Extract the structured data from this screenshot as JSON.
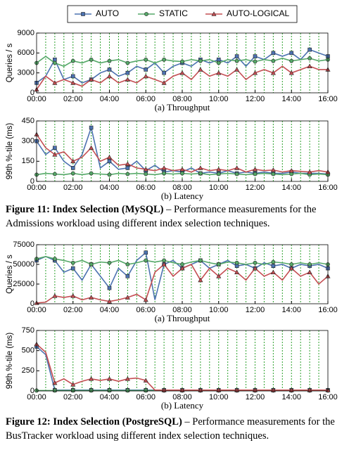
{
  "chart_data": [
    {
      "type": "line",
      "xlabel": "(a) Throughput",
      "ylabel": "Queries / s",
      "x": [
        0,
        0.5,
        1,
        1.5,
        2,
        2.5,
        3,
        3.5,
        4,
        4.5,
        5,
        5.5,
        6,
        6.5,
        7,
        7.5,
        8,
        8.5,
        9,
        9.5,
        10,
        10.5,
        11,
        11.5,
        12,
        12.5,
        13,
        13.5,
        14,
        14.5,
        15,
        15.5,
        16
      ],
      "xlim": [
        0,
        16
      ],
      "ylim": [
        0,
        9000
      ],
      "yticks": [
        0,
        3000,
        6000,
        9000
      ],
      "xticks": [
        {
          "value": 0,
          "label": "00:00"
        },
        {
          "value": 2,
          "label": "02:00"
        },
        {
          "value": 4,
          "label": "04:00"
        },
        {
          "value": 6,
          "label": "06:00"
        },
        {
          "value": 8,
          "label": "08:00"
        },
        {
          "value": 10,
          "label": "10:00"
        },
        {
          "value": 12,
          "label": "12:00"
        },
        {
          "value": 14,
          "label": "14:00"
        },
        {
          "value": 16,
          "label": "16:00"
        }
      ],
      "events_x": [
        0.5,
        1,
        1.5,
        2,
        2.5,
        3,
        3.5,
        4,
        4.5,
        5,
        5.5,
        6,
        6.5,
        7,
        7.5,
        8,
        8.5,
        9,
        9.5,
        10,
        10.5,
        11,
        11.5,
        12,
        12.5,
        13,
        13.5,
        14,
        14.5,
        15,
        15.5
      ],
      "events_color": "#2ca02c",
      "series": [
        {
          "name": "AUTO",
          "color": "#4c72b0",
          "marker": "square",
          "values": [
            1500,
            2500,
            5000,
            2000,
            2500,
            1500,
            2000,
            3000,
            3500,
            2500,
            3000,
            4000,
            3500,
            4500,
            3000,
            4000,
            4500,
            4000,
            5000,
            4500,
            5000,
            4500,
            5500,
            4000,
            5500,
            5000,
            6000,
            5500,
            6000,
            5000,
            6500,
            6000,
            5500
          ]
        },
        {
          "name": "STATIC",
          "color": "#55a868",
          "marker": "circle",
          "values": [
            4500,
            5500,
            4500,
            4000,
            4800,
            4500,
            5000,
            4500,
            4800,
            5000,
            4500,
            4800,
            5000,
            4500,
            5000,
            4800,
            4700,
            5000,
            4800,
            5000,
            4500,
            5000,
            4800,
            5000,
            4700,
            5000,
            4800,
            5200,
            4800,
            5000,
            5200,
            4800,
            5000
          ]
        },
        {
          "name": "AUTO-LOGICAL",
          "color": "#c44e52",
          "marker": "triangle",
          "values": [
            500,
            2500,
            1500,
            2000,
            1500,
            1000,
            2000,
            1500,
            2500,
            1500,
            2000,
            1500,
            2500,
            2000,
            1500,
            2500,
            3000,
            2000,
            3500,
            2500,
            3000,
            2500,
            3500,
            2000,
            3000,
            3500,
            3000,
            4000,
            3000,
            3500,
            4000,
            3500,
            3500
          ]
        }
      ]
    },
    {
      "type": "line",
      "xlabel": "(b) Latency",
      "ylabel": "99th %-tile (ms)",
      "x": [
        0,
        0.5,
        1,
        1.5,
        2,
        2.5,
        3,
        3.5,
        4,
        4.5,
        5,
        5.5,
        6,
        6.5,
        7,
        7.5,
        8,
        8.5,
        9,
        9.5,
        10,
        10.5,
        11,
        11.5,
        12,
        12.5,
        13,
        13.5,
        14,
        14.5,
        15,
        15.5,
        16
      ],
      "xlim": [
        0,
        16
      ],
      "ylim": [
        0,
        450
      ],
      "yticks": [
        0,
        150,
        300,
        450
      ],
      "xticks": [
        {
          "value": 0,
          "label": "00:00"
        },
        {
          "value": 2,
          "label": "02:00"
        },
        {
          "value": 4,
          "label": "04:00"
        },
        {
          "value": 6,
          "label": "06:00"
        },
        {
          "value": 8,
          "label": "08:00"
        },
        {
          "value": 10,
          "label": "10:00"
        },
        {
          "value": 12,
          "label": "12:00"
        },
        {
          "value": 14,
          "label": "14:00"
        },
        {
          "value": 16,
          "label": "16:00"
        }
      ],
      "events_x": [
        0.5,
        1,
        1.5,
        2,
        2.5,
        3,
        3.5,
        4,
        4.5,
        5,
        5.5,
        6,
        6.5,
        7,
        7.5,
        8,
        8.5,
        9,
        9.5,
        10,
        10.5,
        11,
        11.5,
        12,
        12.5,
        13,
        13.5,
        14,
        14.5,
        15,
        15.5
      ],
      "events_color": "#2ca02c",
      "series": [
        {
          "color": "#4c72b0",
          "marker": "square",
          "values": [
            300,
            200,
            250,
            150,
            100,
            200,
            400,
            100,
            150,
            90,
            100,
            150,
            80,
            120,
            70,
            80,
            70,
            100,
            60,
            70,
            60,
            80,
            60,
            70,
            60,
            70,
            60,
            60,
            70,
            60,
            60,
            60,
            55
          ]
        },
        {
          "color": "#55a868",
          "marker": "circle",
          "values": [
            50,
            60,
            55,
            50,
            60,
            50,
            60,
            55,
            50,
            60,
            55,
            60,
            55,
            50,
            60,
            55,
            60,
            55,
            60,
            50,
            55,
            60,
            55,
            50,
            55,
            60,
            55,
            50,
            55,
            60,
            50,
            55,
            50
          ]
        },
        {
          "color": "#c44e52",
          "marker": "triangle",
          "values": [
            350,
            250,
            200,
            220,
            150,
            180,
            250,
            150,
            180,
            120,
            130,
            100,
            90,
            80,
            100,
            80,
            90,
            70,
            100,
            80,
            90,
            80,
            100,
            70,
            90,
            80,
            85,
            70,
            80,
            75,
            70,
            80,
            70
          ]
        }
      ]
    },
    {
      "type": "line",
      "xlabel": "(a) Throughput",
      "ylabel": "Queries / s",
      "x": [
        0,
        0.5,
        1,
        1.5,
        2,
        2.5,
        3,
        3.5,
        4,
        4.5,
        5,
        5.5,
        6,
        6.5,
        7,
        7.5,
        8,
        8.5,
        9,
        9.5,
        10,
        10.5,
        11,
        11.5,
        12,
        12.5,
        13,
        13.5,
        14,
        14.5,
        15,
        15.5,
        16
      ],
      "xlim": [
        0,
        16
      ],
      "ylim": [
        0,
        75000
      ],
      "yticks": [
        0,
        25000,
        50000,
        75000
      ],
      "xticks": [
        {
          "value": 0,
          "label": "00:00"
        },
        {
          "value": 2,
          "label": "02:00"
        },
        {
          "value": 4,
          "label": "04:00"
        },
        {
          "value": 6,
          "label": "06:00"
        },
        {
          "value": 8,
          "label": "08:00"
        },
        {
          "value": 10,
          "label": "10:00"
        },
        {
          "value": 12,
          "label": "12:00"
        },
        {
          "value": 14,
          "label": "14:00"
        },
        {
          "value": 16,
          "label": "16:00"
        }
      ],
      "events_x": [
        0.5,
        1,
        1.5,
        2,
        2.5,
        3,
        3.5,
        4,
        4.5,
        5,
        5.5,
        6,
        6.5,
        7,
        7.5,
        8,
        8.5,
        9,
        9.5,
        10,
        10.5,
        11,
        11.5,
        12,
        12.5,
        13,
        13.5,
        14,
        14.5,
        15,
        15.5
      ],
      "events_color": "#2ca02c",
      "series": [
        {
          "color": "#4c72b0",
          "marker": "square",
          "values": [
            55000,
            60000,
            55000,
            40000,
            45000,
            30000,
            50000,
            35000,
            20000,
            45000,
            35000,
            55000,
            65000,
            5000,
            50000,
            55000,
            45000,
            50000,
            55000,
            45000,
            50000,
            55000,
            48000,
            50000,
            45000,
            52000,
            48000,
            50000,
            45000,
            50000,
            48000,
            50000,
            45000
          ]
        },
        {
          "color": "#55a868",
          "marker": "circle",
          "values": [
            57000,
            60000,
            57000,
            55000,
            52000,
            55000,
            50000,
            53000,
            52000,
            55000,
            50000,
            52000,
            55000,
            53000,
            55000,
            52000,
            50000,
            53000,
            55000,
            52000,
            50000,
            53000,
            52000,
            50000,
            52000,
            50000,
            53000,
            52000,
            50000,
            52000,
            50000,
            52000,
            50000
          ]
        },
        {
          "color": "#c44e52",
          "marker": "triangle",
          "values": [
            1000,
            2000,
            10000,
            8000,
            10000,
            5000,
            8000,
            5000,
            3000,
            5000,
            8000,
            12000,
            5000,
            40000,
            50000,
            35000,
            45000,
            50000,
            30000,
            45000,
            35000,
            45000,
            40000,
            30000,
            45000,
            35000,
            40000,
            30000,
            45000,
            35000,
            40000,
            25000,
            35000
          ]
        }
      ]
    },
    {
      "type": "line",
      "xlabel": "(b) Latency",
      "ylabel": "99th %-tile (ms)",
      "x": [
        0,
        0.5,
        1,
        1.5,
        2,
        2.5,
        3,
        3.5,
        4,
        4.5,
        5,
        5.5,
        6,
        6.5,
        7,
        7.5,
        8,
        8.5,
        9,
        9.5,
        10,
        10.5,
        11,
        11.5,
        12,
        12.5,
        13,
        13.5,
        14,
        14.5,
        15,
        15.5,
        16
      ],
      "xlim": [
        0,
        16
      ],
      "ylim": [
        0,
        750
      ],
      "yticks": [
        0,
        250,
        500,
        750
      ],
      "xticks": [
        {
          "value": 0,
          "label": "00:00"
        },
        {
          "value": 2,
          "label": "02:00"
        },
        {
          "value": 4,
          "label": "04:00"
        },
        {
          "value": 6,
          "label": "06:00"
        },
        {
          "value": 8,
          "label": "08:00"
        },
        {
          "value": 10,
          "label": "10:00"
        },
        {
          "value": 12,
          "label": "12:00"
        },
        {
          "value": 14,
          "label": "14:00"
        },
        {
          "value": 16,
          "label": "16:00"
        }
      ],
      "events_x": [
        0.5,
        1,
        1.5,
        2,
        2.5,
        3,
        3.5,
        4,
        4.5,
        5,
        5.5,
        6,
        6.5,
        7,
        7.5,
        8,
        8.5,
        9,
        9.5,
        10,
        10.5,
        11,
        11.5,
        12,
        12.5,
        13,
        13.5,
        14,
        14.5,
        15,
        15.5
      ],
      "events_color": "#2ca02c",
      "series": [
        {
          "color": "#4c72b0",
          "marker": "square",
          "values": [
            550,
            450,
            10,
            10,
            10,
            10,
            10,
            10,
            10,
            10,
            10,
            10,
            10,
            10,
            10,
            10,
            10,
            10,
            10,
            10,
            10,
            10,
            10,
            10,
            10,
            10,
            10,
            10,
            10,
            10,
            10,
            10,
            10
          ]
        },
        {
          "color": "#55a868",
          "marker": "circle",
          "values": [
            5,
            5,
            5,
            5,
            5,
            5,
            5,
            5,
            5,
            5,
            5,
            5,
            5,
            5,
            5,
            5,
            5,
            5,
            5,
            5,
            5,
            5,
            5,
            5,
            5,
            5,
            5,
            5,
            5,
            5,
            5,
            5,
            5
          ]
        },
        {
          "color": "#c44e52",
          "marker": "triangle",
          "values": [
            580,
            480,
            100,
            150,
            80,
            120,
            150,
            130,
            150,
            120,
            150,
            160,
            130,
            10,
            10,
            10,
            10,
            10,
            10,
            10,
            10,
            10,
            10,
            10,
            10,
            10,
            10,
            10,
            10,
            10,
            10,
            10,
            10
          ]
        }
      ]
    }
  ],
  "captions": [
    {
      "bold": "Figure 11: Index Selection (MySQL)",
      "text": " – Performance measurements for the Admissions workload using different index selection techniques."
    },
    {
      "bold": "Figure 12: Index Selection (PostgreSQL)",
      "text": " – Performance measurements for the BusTracker workload using different index selection techniques."
    }
  ]
}
